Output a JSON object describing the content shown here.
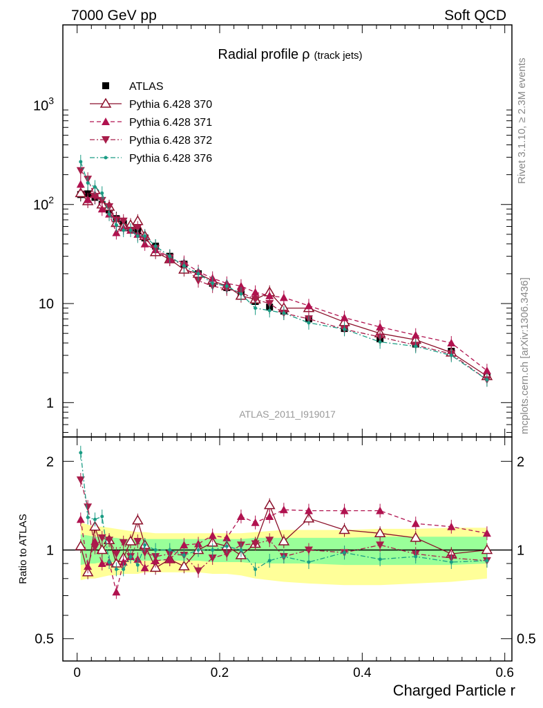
{
  "header": {
    "left": "7000 GeV pp",
    "right": "Soft QCD"
  },
  "side_labels": {
    "rivet": "Rivet 3.1.10, ≥ 2.3M events",
    "mcplots": "mcplots.cern.ch [arXiv:1306.3436]"
  },
  "chart_data": [
    {
      "type": "scatter",
      "title": "Radial profile",
      "title_symbol": "ρ",
      "title_suffix": "(track jets)",
      "watermark": "ATLAS_2011_I919017",
      "xlabel": "Charged Particle r",
      "ylabel": "",
      "xlim": [
        -0.02,
        0.61
      ],
      "ylim": [
        0.45,
        6500
      ],
      "yscale": "log",
      "x_ticks": [
        0,
        0.2,
        0.4,
        0.6
      ],
      "x_tick_labels": [
        "0",
        "0.2",
        "0.4",
        "0.6"
      ],
      "y_ticks": [
        1,
        10,
        100,
        1000
      ],
      "y_tick_labels": [
        "1",
        "10",
        "10^2",
        "10^3"
      ],
      "legend_position": "top-left",
      "x": [
        0.005,
        0.015,
        0.025,
        0.035,
        0.045,
        0.055,
        0.065,
        0.075,
        0.085,
        0.095,
        0.11,
        0.13,
        0.15,
        0.17,
        0.19,
        0.21,
        0.23,
        0.25,
        0.27,
        0.29,
        0.325,
        0.375,
        0.425,
        0.475,
        0.525,
        0.575
      ],
      "series": [
        {
          "name": "ATLAS",
          "color": "#000000",
          "marker": "square",
          "line": "none",
          "values": [
            126,
            128,
            118,
            100,
            88,
            72,
            64,
            58,
            54,
            46,
            38,
            30,
            25,
            20,
            16,
            14.5,
            12.5,
            10.5,
            9.2,
            8.4,
            7.0,
            5.6,
            4.4,
            3.9,
            3.3,
            1.85
          ]
        },
        {
          "name": "Pythia 6.428 370",
          "color": "#8b0f2a",
          "marker": "triangle-open",
          "line": "solid",
          "values": [
            130,
            108,
            140,
            100,
            95,
            65,
            60,
            62,
            68,
            48,
            33,
            28,
            22,
            20,
            17,
            15,
            12,
            11,
            13,
            9,
            9,
            6.5,
            5,
            4.3,
            3.2,
            1.85
          ]
        },
        {
          "name": "Pythia 6.428 371",
          "color": "#b0124f",
          "marker": "triangle-up",
          "line": "dashed",
          "values": [
            160,
            112,
            126,
            90,
            80,
            52,
            58,
            55,
            50,
            40,
            35,
            28,
            26,
            21,
            18,
            16,
            15,
            13,
            12,
            11.5,
            9.5,
            7.2,
            5.8,
            4.8,
            4.0,
            2.1
          ]
        },
        {
          "name": "Pythia 6.428 372",
          "color": "#a81d4a",
          "marker": "triangle-down",
          "line": "dashdot",
          "values": [
            220,
            180,
            120,
            110,
            95,
            70,
            68,
            55,
            58,
            45,
            36,
            29,
            24,
            17,
            15,
            14,
            13,
            11,
            10,
            8,
            7,
            5.5,
            4.6,
            3.8,
            3.1,
            1.7
          ]
        },
        {
          "name": "Pythia 6.428 376",
          "color": "#1a9c84",
          "marker": "dot",
          "line": "dashdot",
          "values": [
            270,
            165,
            150,
            130,
            80,
            62,
            55,
            55,
            48,
            48,
            38,
            30,
            24,
            20,
            16,
            15,
            12.5,
            9,
            8.5,
            8,
            6.4,
            5.5,
            4.1,
            3.7,
            3.0,
            1.7
          ]
        }
      ]
    },
    {
      "type": "scatter",
      "title": "",
      "xlabel": "Charged Particle r",
      "ylabel": "Ratio to ATLAS",
      "xlim": [
        -0.02,
        0.61
      ],
      "ylim": [
        0.42,
        2.42
      ],
      "yscale": "log",
      "y_ticks": [
        0.5,
        1,
        2
      ],
      "y_tick_labels": [
        "0.5",
        "1",
        "2"
      ],
      "reference_line": 1,
      "bands": {
        "yellow": {
          "color": "#ffff99",
          "lower": [
            0.79,
            0.8,
            0.8,
            0.81,
            0.82,
            0.82,
            0.83,
            0.83,
            0.83,
            0.84,
            0.84,
            0.84,
            0.84,
            0.84,
            0.83,
            0.83,
            0.82,
            0.8,
            0.79,
            0.78,
            0.77,
            0.76,
            0.76,
            0.77,
            0.78,
            0.8
          ],
          "upper": [
            1.24,
            1.22,
            1.2,
            1.2,
            1.19,
            1.18,
            1.17,
            1.16,
            1.15,
            1.15,
            1.14,
            1.14,
            1.14,
            1.14,
            1.14,
            1.14,
            1.14,
            1.15,
            1.16,
            1.17,
            1.17,
            1.17,
            1.18,
            1.18,
            1.19,
            1.19
          ]
        },
        "green": {
          "color": "#99ff99",
          "lower": [
            0.89,
            0.9,
            0.9,
            0.91,
            0.91,
            0.91,
            0.92,
            0.92,
            0.92,
            0.92,
            0.92,
            0.92,
            0.92,
            0.92,
            0.91,
            0.91,
            0.91,
            0.9,
            0.9,
            0.9,
            0.9,
            0.89,
            0.89,
            0.89,
            0.89,
            0.9
          ],
          "upper": [
            1.13,
            1.12,
            1.11,
            1.11,
            1.1,
            1.1,
            1.09,
            1.09,
            1.09,
            1.09,
            1.09,
            1.09,
            1.09,
            1.09,
            1.09,
            1.09,
            1.09,
            1.1,
            1.1,
            1.1,
            1.1,
            1.1,
            1.11,
            1.11,
            1.11,
            1.11
          ]
        }
      },
      "series": [
        {
          "name": "Pythia 6.428 370",
          "color": "#8b0f2a",
          "marker": "triangle-open",
          "line": "solid",
          "values": [
            1.03,
            0.84,
            1.2,
            1.0,
            1.08,
            0.9,
            0.94,
            1.07,
            1.26,
            1.04,
            0.87,
            0.93,
            0.88,
            1.0,
            1.06,
            1.03,
            0.96,
            1.05,
            1.42,
            1.07,
            1.28,
            1.17,
            1.14,
            1.1,
            0.97,
            1.0
          ]
        },
        {
          "name": "Pythia 6.428 371",
          "color": "#b0124f",
          "marker": "triangle-up",
          "line": "dashed",
          "values": [
            1.27,
            0.88,
            1.07,
            0.9,
            0.91,
            0.72,
            0.91,
            0.95,
            0.93,
            0.87,
            0.92,
            0.93,
            1.04,
            1.05,
            1.12,
            1.1,
            1.3,
            1.24,
            1.3,
            1.37,
            1.36,
            1.36,
            1.36,
            1.23,
            1.2,
            1.14
          ]
        },
        {
          "name": "Pythia 6.428 372",
          "color": "#a81d4a",
          "marker": "triangle-down",
          "line": "dashdot",
          "values": [
            1.73,
            1.4,
            1.02,
            1.1,
            1.08,
            0.97,
            1.06,
            0.95,
            1.07,
            0.98,
            0.95,
            0.97,
            0.96,
            0.85,
            0.94,
            0.97,
            1.04,
            1.05,
            1.08,
            0.95,
            1.0,
            0.98,
            1.04,
            0.97,
            0.94,
            0.92
          ]
        },
        {
          "name": "Pythia 6.428 376",
          "color": "#1a9c84",
          "marker": "dot",
          "line": "dashdot",
          "values": [
            2.14,
            1.29,
            1.27,
            1.3,
            0.91,
            0.86,
            0.86,
            0.95,
            0.89,
            1.04,
            1.0,
            1.0,
            0.96,
            1.0,
            1.0,
            1.03,
            1.0,
            0.86,
            0.92,
            0.95,
            0.91,
            0.98,
            0.93,
            0.95,
            0.91,
            0.92
          ]
        }
      ]
    }
  ]
}
